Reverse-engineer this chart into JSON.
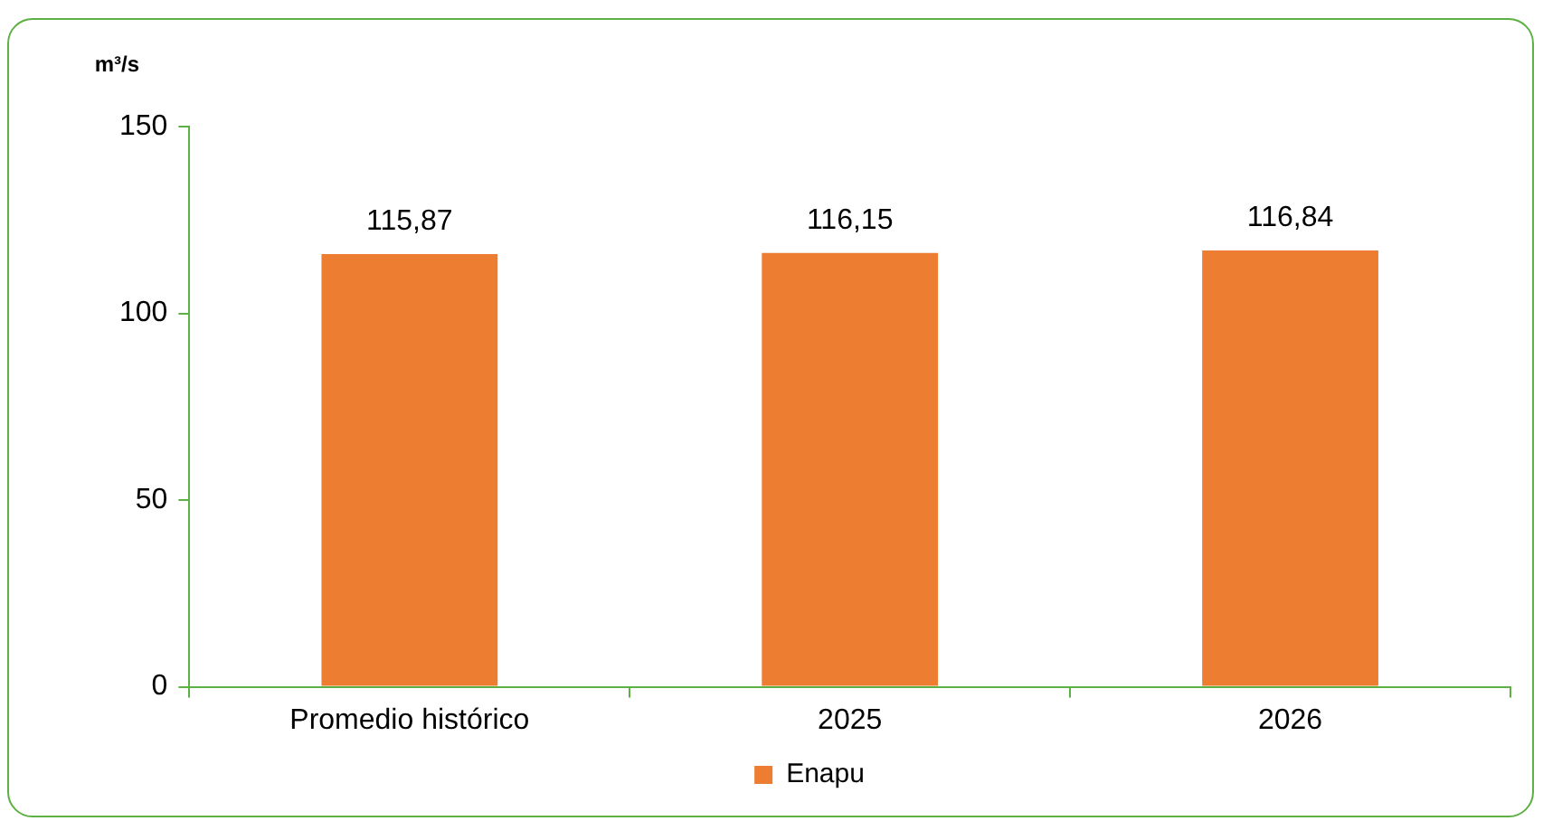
{
  "chart_data": {
    "type": "bar",
    "ylabel": "m³/s",
    "categories": [
      "Promedio histórico",
      "2025",
      "2026"
    ],
    "series": [
      {
        "name": "Enapu",
        "color": "#ed7d31",
        "values": [
          115.87,
          116.15,
          116.84
        ],
        "value_labels": [
          "115,87",
          "116,15",
          "116,84"
        ]
      }
    ],
    "ylim": [
      0,
      150
    ],
    "yticks": [
      0,
      50,
      100,
      150
    ],
    "legend": "bottom"
  }
}
